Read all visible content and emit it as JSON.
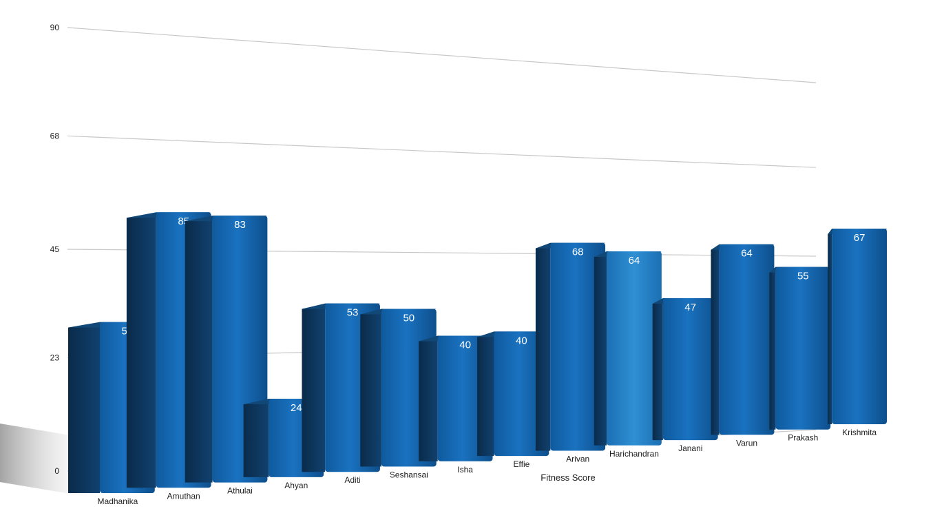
{
  "chart_data": {
    "type": "bar",
    "title": "",
    "xlabel": "Fitness Score",
    "ylabel": "",
    "ylim": [
      0,
      90
    ],
    "yticks": [
      "0",
      "23",
      "45",
      "68",
      "90"
    ],
    "grid": true,
    "legend": "none",
    "categories": [
      "Madhanika",
      "Amuthan",
      "Athulai",
      "Ahyan",
      "Aditi",
      "Seshansai",
      "Isha",
      "Effie",
      "Arivan",
      "Harichandran",
      "Janani",
      "Varun",
      "Prakash",
      "Krishmita"
    ],
    "values": [
      52,
      85,
      83,
      24,
      53,
      50,
      40,
      40,
      68,
      64,
      47,
      64,
      55,
      67
    ],
    "colors": {
      "bar": "#1565b0",
      "bar_side": "#0d3a63",
      "bar_highlight": "#2a86cc",
      "label": "#ffffff",
      "axis_text": "#222222",
      "grid": "#c8c8c8"
    }
  }
}
